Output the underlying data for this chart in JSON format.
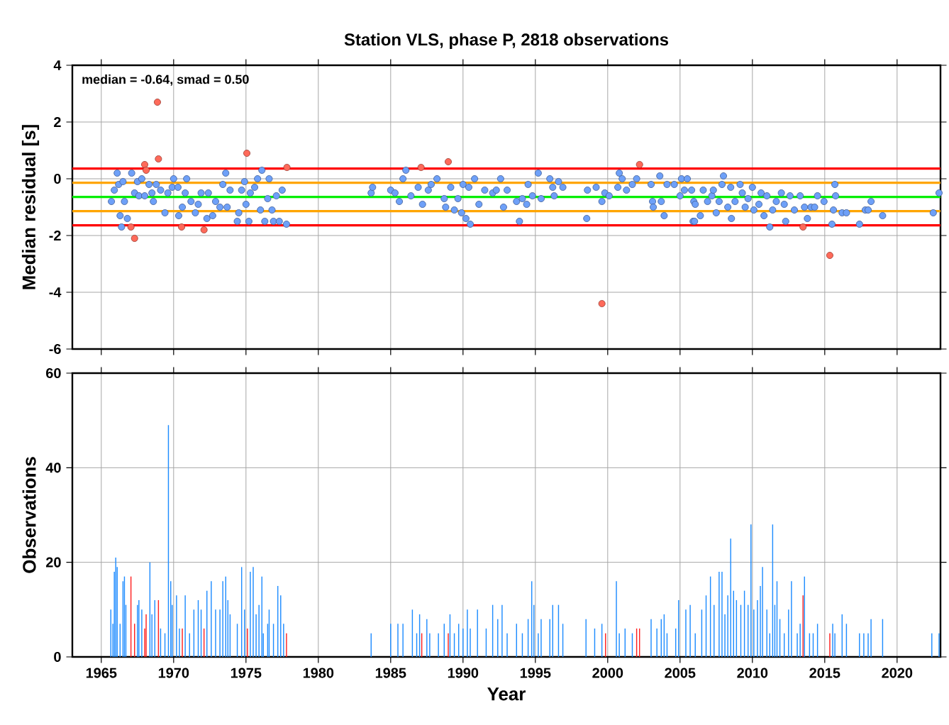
{
  "chart_data": [
    {
      "type": "scatter",
      "title": "Station VLS, phase P, 2818 observations",
      "ylabel": "Median residual [s]",
      "xlim": [
        1963,
        2023
      ],
      "xticks": [
        1965,
        1970,
        1975,
        1980,
        1985,
        1990,
        1995,
        2000,
        2005,
        2010,
        2015,
        2020
      ],
      "ylim": [
        -6,
        4
      ],
      "yticks": [
        -6,
        -4,
        -2,
        0,
        2,
        4
      ],
      "grid": true,
      "tick_labels": "y",
      "annotations": [
        "median = -0.64, smad = 0.50"
      ],
      "ref_lines": [
        {
          "axis": "y",
          "value": 0.36,
          "color": "#ff0000"
        },
        {
          "axis": "y",
          "value": -0.14,
          "color": "#ffa500"
        },
        {
          "axis": "y",
          "value": -0.64,
          "color": "#00ee00"
        },
        {
          "axis": "y",
          "value": -1.14,
          "color": "#ffa500"
        },
        {
          "axis": "y",
          "value": -1.64,
          "color": "#ff0000"
        }
      ],
      "series": [
        {
          "color": "#6ea0f8",
          "marker": "circle",
          "x": [
            1965.7,
            1966.1,
            1965.9,
            1966.2,
            1966.3,
            1966.4,
            1966.5,
            1966.6,
            1966.8,
            1967.1,
            1967.3,
            1967.5,
            1967.6,
            1967.8,
            1968.0,
            1968.3,
            1968.5,
            1968.6,
            1968.8,
            1969.1,
            1969.4,
            1969.6,
            1969.9,
            1970.0,
            1970.3,
            1970.35,
            1970.6,
            1970.8,
            1970.9,
            1971.2,
            1971.5,
            1971.7,
            1971.9,
            1972.3,
            1972.4,
            1972.7,
            1972.9,
            1973.2,
            1973.4,
            1973.6,
            1973.7,
            1973.9,
            1974.4,
            1974.5,
            1974.7,
            1974.9,
            1975.0,
            1975.2,
            1975.3,
            1975.6,
            1975.8,
            1976.0,
            1976.1,
            1976.3,
            1976.5,
            1976.6,
            1976.8,
            1976.9,
            1977.1,
            1977.3,
            1977.5,
            1977.8,
            1983.65,
            1983.75,
            1985.0,
            1985.3,
            1985.6,
            1985.85,
            1986.05,
            1986.4,
            1986.9,
            1987.2,
            1987.6,
            1987.8,
            1988.2,
            1988.7,
            1988.8,
            1989.15,
            1989.4,
            1989.65,
            1989.9,
            1990.2,
            1990.5,
            1990.0,
            1990.4,
            1990.8,
            1991.1,
            1991.5,
            1992.05,
            1992.3,
            1992.6,
            1992.8,
            1993.05,
            1993.7,
            1993.9,
            1994.1,
            1994.4,
            1994.5,
            1994.8,
            1995.2,
            1995.4,
            1996.0,
            1996.2,
            1996.3,
            1996.6,
            1996.9,
            1998.55,
            1998.6,
            1999.2,
            1999.6,
            1999.8,
            2000.1,
            2000.7,
            2000.8,
            2001.0,
            2001.3,
            2001.7,
            2002.0,
            2003.0,
            2003.1,
            2003.15,
            2003.6,
            2003.7,
            2003.9,
            2004.1,
            2004.6,
            2005.0,
            2005.1,
            2005.3,
            2005.5,
            2005.8,
            2005.9,
            2005.95,
            2006.0,
            2006.05,
            2006.4,
            2006.6,
            2006.9,
            2007.2,
            2007.3,
            2007.5,
            2007.7,
            2007.9,
            2008.0,
            2008.3,
            2008.5,
            2008.55,
            2008.8,
            2009.15,
            2009.3,
            2009.5,
            2009.7,
            2010.0,
            2010.1,
            2010.45,
            2010.6,
            2010.8,
            2011.0,
            2011.2,
            2011.4,
            2011.65,
            2012.0,
            2012.2,
            2012.3,
            2012.6,
            2012.9,
            2013.3,
            2013.6,
            2013.8,
            2014.05,
            2014.3,
            2014.5,
            2014.95,
            2015.5,
            2015.6,
            2015.7,
            2015.75,
            2016.2,
            2016.5,
            2017.4,
            2017.8,
            2018.0,
            2018.2,
            2019.0,
            2022.5,
            2022.9
          ],
          "values": [
            -0.8,
            0.2,
            -0.4,
            -0.2,
            -1.3,
            -1.7,
            -0.1,
            -0.8,
            -1.4,
            0.2,
            -0.5,
            -0.1,
            -0.6,
            0.0,
            -0.6,
            -0.2,
            -0.5,
            -0.8,
            -0.2,
            -0.4,
            -1.2,
            -0.5,
            -0.3,
            0.0,
            -0.3,
            -1.3,
            -1.0,
            -0.5,
            0.0,
            -0.8,
            -1.2,
            -0.9,
            -0.5,
            -1.4,
            -0.5,
            -1.3,
            -0.8,
            -1.0,
            -0.2,
            0.2,
            -1.0,
            -0.4,
            -1.5,
            -1.2,
            -0.4,
            -0.1,
            -0.9,
            -1.5,
            -0.5,
            -0.3,
            0.0,
            -1.1,
            0.3,
            -1.5,
            -0.7,
            0.0,
            -1.1,
            -1.5,
            -0.6,
            -1.5,
            -0.4,
            -1.6,
            -0.5,
            -0.3,
            -0.4,
            -0.5,
            -0.8,
            0.0,
            0.3,
            -0.6,
            -0.3,
            -0.9,
            -0.4,
            -0.2,
            0.0,
            -0.7,
            -1.0,
            -0.3,
            -1.1,
            -0.7,
            -1.2,
            -1.4,
            -1.6,
            -0.2,
            -0.3,
            0.0,
            -0.9,
            -0.4,
            -0.5,
            -0.4,
            0.0,
            -1.0,
            -0.4,
            -0.8,
            -1.5,
            -0.7,
            -0.9,
            -0.2,
            -0.6,
            0.2,
            -0.7,
            0.0,
            -0.3,
            -0.6,
            -0.1,
            -0.3,
            -1.4,
            -0.4,
            -0.3,
            -0.8,
            -0.5,
            -0.6,
            -0.3,
            0.2,
            0.0,
            -0.4,
            -0.2,
            0.0,
            -0.2,
            -0.8,
            -1.0,
            0.1,
            -0.8,
            -1.3,
            -0.2,
            -0.2,
            -0.6,
            0.0,
            -0.4,
            0.0,
            -0.4,
            -1.5,
            -0.8,
            -1.5,
            -0.9,
            -1.3,
            -0.4,
            -0.8,
            -0.6,
            -0.4,
            -1.2,
            -0.8,
            -0.2,
            0.1,
            -1.0,
            -0.3,
            -1.4,
            -0.8,
            -0.2,
            -0.5,
            -1.0,
            -0.7,
            -0.3,
            -1.1,
            -0.9,
            -0.5,
            -1.3,
            -0.6,
            -1.7,
            -1.1,
            -0.8,
            -0.5,
            -0.9,
            -1.5,
            -0.6,
            -1.1,
            -0.6,
            -1.0,
            -1.4,
            -1.0,
            -1.0,
            -0.6,
            -0.8,
            -1.6,
            -1.1,
            -0.2,
            -0.6,
            -1.2,
            -1.2,
            -1.6,
            -1.1,
            -1.1,
            -0.8,
            -1.3,
            -1.2,
            -0.5
          ]
        },
        {
          "color": "#ff6a5a",
          "marker": "circle",
          "x": [
            1967.05,
            1967.3,
            1968.0,
            1968.1,
            1968.88,
            1968.95,
            1970.55,
            1972.1,
            1975.06,
            1977.83,
            1987.1,
            1988.98,
            1999.6,
            2002.2,
            2013.5,
            2015.35
          ],
          "values": [
            -1.7,
            -2.1,
            0.5,
            0.3,
            2.7,
            0.7,
            -1.7,
            -1.8,
            0.9,
            0.4,
            0.4,
            0.6,
            -4.4,
            0.5,
            -1.7,
            -2.7
          ]
        }
      ]
    },
    {
      "type": "bar",
      "xlabel": "Year",
      "ylabel": "Observations",
      "xlim": [
        1963,
        2023
      ],
      "xticks": [
        1965,
        1970,
        1975,
        1980,
        1985,
        1990,
        1995,
        2000,
        2005,
        2010,
        2015,
        2020
      ],
      "ylim": [
        0,
        60
      ],
      "yticks": [
        0,
        20,
        40,
        60
      ],
      "grid": true,
      "series": [
        {
          "color": "#1e8cff",
          "x": [
            1965.66,
            1965.8,
            1965.9,
            1966.0,
            1966.1,
            1966.3,
            1966.5,
            1966.6,
            1966.7,
            1967.5,
            1967.6,
            1967.8,
            1968.36,
            1968.5,
            1968.7,
            1969.1,
            1969.4,
            1969.64,
            1969.8,
            1969.9,
            1970.2,
            1970.4,
            1970.8,
            1971.1,
            1971.4,
            1971.7,
            1971.9,
            1972.3,
            1972.6,
            1972.9,
            1973.2,
            1973.4,
            1973.6,
            1973.75,
            1973.9,
            1974.4,
            1974.7,
            1974.9,
            1975.3,
            1975.5,
            1975.7,
            1975.9,
            1976.1,
            1976.2,
            1976.5,
            1976.6,
            1976.9,
            1977.2,
            1977.4,
            1977.6,
            1983.65,
            1985.0,
            1985.5,
            1985.85,
            1986.5,
            1986.8,
            1987.0,
            1987.5,
            1987.7,
            1988.3,
            1988.7,
            1989.1,
            1989.4,
            1989.7,
            1990.0,
            1990.3,
            1990.5,
            1991.0,
            1991.6,
            1992.05,
            1992.4,
            1992.7,
            1993.05,
            1993.7,
            1994.1,
            1994.5,
            1994.75,
            1994.9,
            1995.2,
            1995.4,
            1996.0,
            1996.2,
            1996.6,
            1996.9,
            1998.5,
            1999.1,
            1999.6,
            2000.6,
            2000.8,
            2001.2,
            2001.7,
            2003.0,
            2003.4,
            2003.7,
            2003.9,
            2004.1,
            2004.7,
            2004.9,
            2005.4,
            2005.7,
            2006.05,
            2006.5,
            2006.8,
            2007.1,
            2007.35,
            2007.7,
            2007.9,
            2008.1,
            2008.3,
            2008.5,
            2008.7,
            2008.9,
            2009.2,
            2009.45,
            2009.7,
            2009.9,
            2010.1,
            2010.35,
            2010.55,
            2010.7,
            2011.0,
            2011.2,
            2011.4,
            2011.55,
            2011.7,
            2011.9,
            2012.2,
            2012.5,
            2012.7,
            2013.1,
            2013.3,
            2013.6,
            2013.95,
            2014.2,
            2014.5,
            2015.55,
            2015.7,
            2016.2,
            2016.5,
            2017.4,
            2017.7,
            2018.0,
            2018.2,
            2019.0,
            2022.4,
            2022.9
          ],
          "values": [
            10,
            7,
            18,
            21,
            19,
            7,
            16,
            17,
            11,
            11,
            12,
            10,
            20,
            9,
            12,
            6,
            5,
            49,
            16,
            11,
            13,
            6,
            13,
            5,
            10,
            12,
            10,
            14,
            16,
            10,
            10,
            16,
            17,
            12,
            9,
            7,
            19,
            10,
            18,
            19,
            9,
            11,
            17,
            5,
            7,
            10,
            7,
            15,
            13,
            7,
            5,
            7,
            7,
            7,
            10,
            5,
            9,
            8,
            5,
            5,
            7,
            9,
            5,
            7,
            6,
            10,
            6,
            10,
            6,
            11,
            8,
            11,
            5,
            7,
            5,
            8,
            16,
            11,
            5,
            8,
            8,
            11,
            11,
            7,
            8,
            6,
            7,
            16,
            5,
            6,
            5,
            8,
            6,
            8,
            9,
            5,
            6,
            12,
            10,
            11,
            5,
            10,
            13,
            17,
            11,
            18,
            18,
            9,
            13,
            25,
            14,
            12,
            11,
            14,
            11,
            28,
            10,
            12,
            15,
            19,
            10,
            5,
            28,
            11,
            16,
            8,
            5,
            10,
            16,
            5,
            7,
            17,
            5,
            5,
            7,
            7,
            5,
            9,
            7,
            5,
            5,
            5,
            8,
            8,
            5,
            5
          ]
        },
        {
          "color": "#ff2020",
          "x": [
            1967.05,
            1967.3,
            1968.0,
            1968.1,
            1968.95,
            1970.6,
            1972.1,
            1975.1,
            1977.8,
            1987.15,
            1988.98,
            1999.85,
            2002.0,
            2002.2,
            2013.5,
            2015.35
          ],
          "values": [
            17,
            7,
            6,
            9,
            12,
            6,
            6,
            6,
            5,
            5,
            5,
            5,
            6,
            6,
            13,
            5
          ]
        }
      ]
    }
  ]
}
